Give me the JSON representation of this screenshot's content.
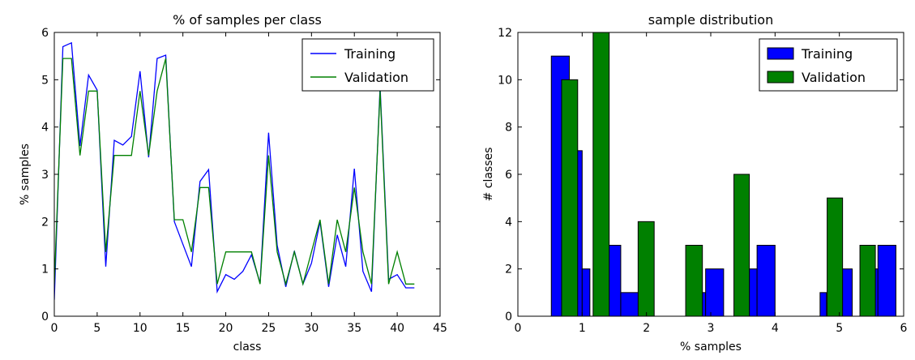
{
  "chart_data": [
    {
      "type": "line",
      "title": "% of samples per class",
      "xlabel": "class",
      "ylabel": "% samples",
      "xlim": [
        0,
        45
      ],
      "ylim": [
        0,
        6
      ],
      "xticks": [
        "0",
        "5",
        "10",
        "15",
        "20",
        "25",
        "30",
        "35",
        "40",
        "45"
      ],
      "yticks": [
        "0",
        "1",
        "2",
        "3",
        "4",
        "5",
        "6"
      ],
      "grid": false,
      "legend_position": "top-right",
      "series": [
        {
          "name": "Training",
          "color": "#0000ff",
          "x": [
            0,
            1,
            2,
            3,
            4,
            5,
            6,
            7,
            8,
            9,
            10,
            11,
            12,
            13,
            14,
            15,
            16,
            17,
            18,
            19,
            20,
            21,
            22,
            23,
            24,
            25,
            26,
            27,
            28,
            29,
            30,
            31,
            32,
            33,
            34,
            35,
            36,
            37,
            38,
            39,
            40,
            41,
            42
          ],
          "values": [
            0.35,
            5.7,
            5.78,
            3.6,
            5.1,
            4.78,
            1.05,
            3.72,
            3.62,
            3.8,
            5.18,
            3.36,
            5.45,
            5.52,
            2.0,
            1.52,
            1.05,
            2.85,
            3.1,
            0.52,
            0.88,
            0.78,
            0.95,
            1.3,
            0.7,
            3.88,
            1.5,
            0.62,
            1.38,
            0.68,
            1.12,
            2.0,
            0.62,
            1.72,
            1.05,
            3.12,
            0.95,
            0.52,
            4.85,
            0.78,
            0.88,
            0.6,
            0.6
          ]
        },
        {
          "name": "Validation",
          "color": "#008000",
          "x": [
            0,
            1,
            2,
            3,
            4,
            5,
            6,
            7,
            8,
            9,
            10,
            11,
            12,
            13,
            14,
            15,
            16,
            17,
            18,
            19,
            20,
            21,
            22,
            23,
            24,
            25,
            26,
            27,
            28,
            29,
            30,
            31,
            32,
            33,
            34,
            35,
            36,
            37,
            38,
            39,
            40,
            41,
            42
          ],
          "values": [
            0.68,
            5.45,
            5.45,
            3.4,
            4.76,
            4.76,
            1.36,
            3.4,
            3.4,
            3.4,
            4.76,
            3.4,
            4.76,
            5.45,
            2.04,
            2.04,
            1.36,
            2.72,
            2.72,
            0.68,
            1.36,
            1.36,
            1.36,
            1.36,
            0.68,
            3.4,
            1.36,
            0.68,
            1.36,
            0.68,
            1.36,
            2.04,
            0.68,
            2.04,
            1.36,
            2.72,
            1.36,
            0.68,
            4.76,
            0.68,
            1.36,
            0.68,
            0.68
          ]
        }
      ]
    },
    {
      "type": "bar",
      "title": "sample distribution",
      "xlabel": "% samples",
      "ylabel": "# classes",
      "xlim": [
        0,
        6
      ],
      "ylim": [
        0,
        12
      ],
      "xticks": [
        "0",
        "1",
        "2",
        "3",
        "4",
        "5",
        "6"
      ],
      "yticks": [
        "0",
        "2",
        "4",
        "6",
        "8",
        "10",
        "12"
      ],
      "grid": false,
      "legend_position": "top-right",
      "series": [
        {
          "name": "Training",
          "color": "#0000ff",
          "bins": [
            [
              0.52,
              0.8
            ],
            [
              0.8,
              1.0
            ],
            [
              1.0,
              1.12
            ],
            [
              1.12,
              1.4
            ],
            [
              1.4,
              1.6
            ],
            [
              1.6,
              1.88
            ],
            [
              1.88,
              2.0
            ],
            [
              2.0,
              2.5
            ],
            [
              2.5,
              2.8
            ],
            [
              2.8,
              2.92
            ],
            [
              2.92,
              3.2
            ],
            [
              3.2,
              3.4
            ],
            [
              3.4,
              3.6
            ],
            [
              3.6,
              3.72
            ],
            [
              3.72,
              4.0
            ],
            [
              4.0,
              4.7
            ],
            [
              4.7,
              4.8
            ],
            [
              4.8,
              5.0
            ],
            [
              5.0,
              5.2
            ],
            [
              5.2,
              5.5
            ],
            [
              5.5,
              5.6
            ],
            [
              5.6,
              5.88
            ]
          ],
          "values": [
            11,
            7,
            2,
            0,
            3,
            1,
            2,
            0,
            0,
            1,
            2,
            0,
            1,
            2,
            3,
            0,
            1,
            0,
            2,
            0,
            2,
            3
          ]
        },
        {
          "name": "Validation",
          "color": "#008000",
          "bins": [
            [
              0.68,
              0.93
            ],
            [
              1.17,
              1.42
            ],
            [
              1.87,
              2.12
            ],
            [
              2.61,
              2.87
            ],
            [
              3.36,
              3.6
            ],
            [
              4.81,
              5.05
            ],
            [
              5.32,
              5.56
            ]
          ],
          "values": [
            10,
            12,
            4,
            3,
            6,
            5,
            3
          ]
        }
      ]
    }
  ]
}
